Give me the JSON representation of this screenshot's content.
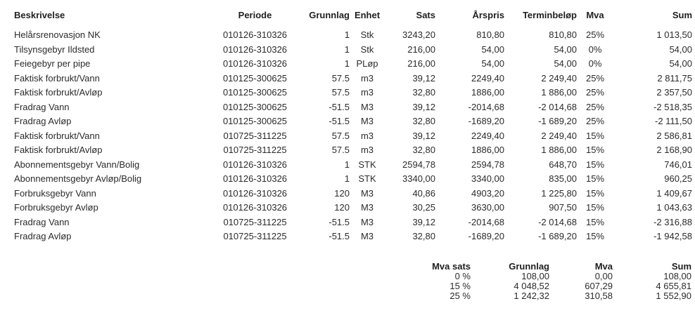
{
  "document": {
    "kind": "invoice-specification-table",
    "text_color": "#2b2b2b"
  },
  "invoice_table": {
    "columns": [
      {
        "label": "Beskrivelse",
        "align": "left"
      },
      {
        "label": "Periode",
        "align": "center"
      },
      {
        "label": "Grunnlag",
        "align": "right"
      },
      {
        "label": "Enhet",
        "align": "center"
      },
      {
        "label": "Sats",
        "align": "right"
      },
      {
        "label": "Årspris",
        "align": "right"
      },
      {
        "label": "Terminbeløp",
        "align": "right"
      },
      {
        "label": "Mva",
        "align": "center"
      },
      {
        "label": "Sum",
        "align": "right"
      }
    ],
    "rows": [
      [
        "Helårsrenovasjon NK",
        "010126-310326",
        "1",
        "Stk",
        "3243,20",
        "810,80",
        "810,80",
        "25%",
        "1 013,50"
      ],
      [
        "Tilsynsgebyr Ildsted",
        "010126-310326",
        "1",
        "Stk",
        "216,00",
        "54,00",
        "54,00",
        "0%",
        "54,00"
      ],
      [
        "Feiegebyr per pipe",
        "010126-310326",
        "1",
        "PLøp",
        "216,00",
        "54,00",
        "54,00",
        "0%",
        "54,00"
      ],
      [
        "Faktisk forbrukt/Vann",
        "010125-300625",
        "57.5",
        "m3",
        "39,12",
        "2249,40",
        "2 249,40",
        "25%",
        "2 811,75"
      ],
      [
        "Faktisk forbrukt/Avløp",
        "010125-300625",
        "57.5",
        "m3",
        "32,80",
        "1886,00",
        "1 886,00",
        "25%",
        "2 357,50"
      ],
      [
        "Fradrag Vann",
        "010125-300625",
        "-51.5",
        "M3",
        "39,12",
        "-2014,68",
        "-2 014,68",
        "25%",
        "-2 518,35"
      ],
      [
        "Fradrag Avløp",
        "010125-300625",
        "-51.5",
        "M3",
        "32,80",
        "-1689,20",
        "-1 689,20",
        "25%",
        "-2 111,50"
      ],
      [
        "Faktisk forbrukt/Vann",
        "010725-311225",
        "57.5",
        "m3",
        "39,12",
        "2249,40",
        "2 249,40",
        "15%",
        "2 586,81"
      ],
      [
        "Faktisk forbrukt/Avløp",
        "010725-311225",
        "57.5",
        "m3",
        "32,80",
        "1886,00",
        "1 886,00",
        "15%",
        "2 168,90"
      ],
      [
        "Abonnementsgebyr Vann/Bolig",
        "010126-310326",
        "1",
        "STK",
        "2594,78",
        "2594,78",
        "648,70",
        "15%",
        "746,01"
      ],
      [
        "Abonnementsgebyr Avløp/Bolig",
        "010126-310326",
        "1",
        "STK",
        "3340,00",
        "3340,00",
        "835,00",
        "15%",
        "960,25"
      ],
      [
        "Forbruksgebyr Vann",
        "010126-310326",
        "120",
        "M3",
        "40,86",
        "4903,20",
        "1 225,80",
        "15%",
        "1 409,67"
      ],
      [
        "Forbruksgebyr Avløp",
        "010126-310326",
        "120",
        "M3",
        "30,25",
        "3630,00",
        "907,50",
        "15%",
        "1 043,63"
      ],
      [
        "Fradrag Vann",
        "010725-311225",
        "-51.5",
        "M3",
        "39,12",
        "-2014,68",
        "-2 014,68",
        "15%",
        "-2 316,88"
      ],
      [
        "Fradrag Avløp",
        "010725-311225",
        "-51.5",
        "M3",
        "32,80",
        "-1689,20",
        "-1 689,20",
        "15%",
        "-1 942,58"
      ]
    ]
  },
  "mva_summary": {
    "columns": [
      {
        "label": "Mva sats",
        "align": "right"
      },
      {
        "label": "Grunnlag",
        "align": "right"
      },
      {
        "label": "Mva",
        "align": "right"
      },
      {
        "label": "Sum",
        "align": "right"
      }
    ],
    "rows": [
      [
        "0 %",
        "108,00",
        "0,00",
        "108,00"
      ],
      [
        "15 %",
        "4 048,52",
        "607,29",
        "4 655,81"
      ],
      [
        "25 %",
        "1 242,32",
        "310,58",
        "1 552,90"
      ]
    ]
  }
}
